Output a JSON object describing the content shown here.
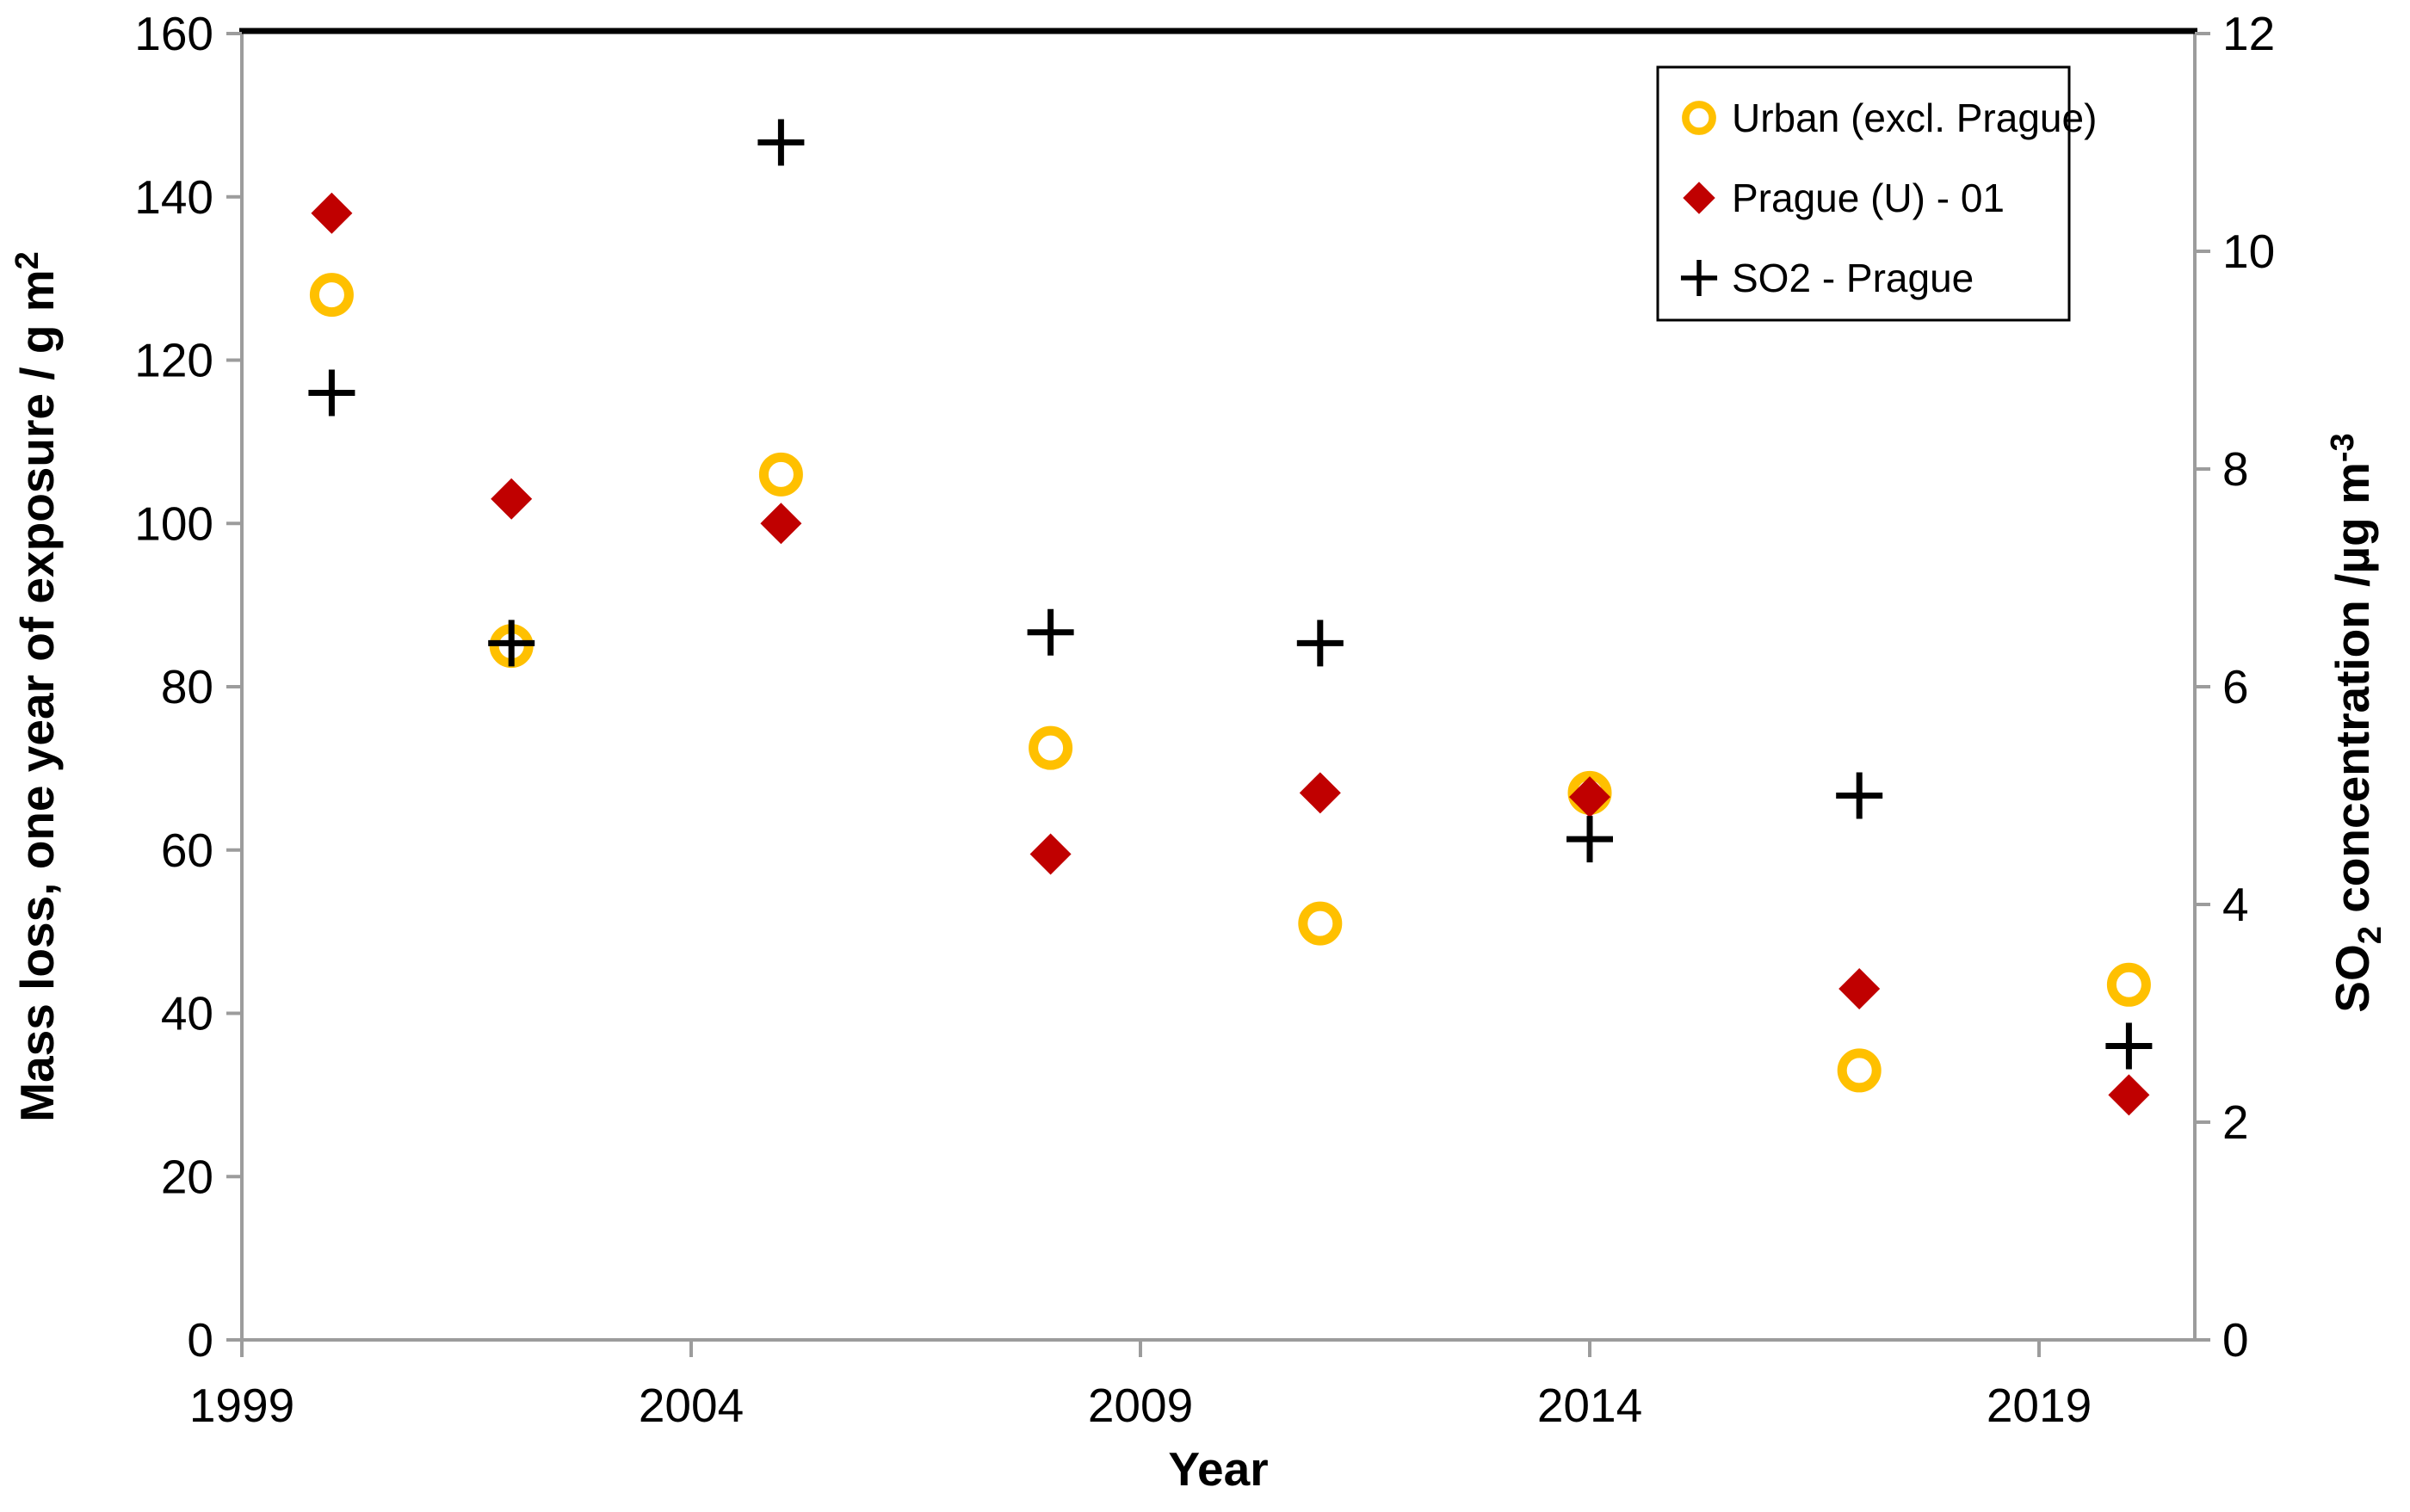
{
  "colors": {
    "axis": "#9C9C9C",
    "border": "#000000",
    "urban": "#FFC000",
    "prague": "#C00000",
    "so2": "#000000",
    "background": "#FFFFFF"
  },
  "chart_data": {
    "type": "scatter",
    "title": "",
    "xlabel": "Year",
    "ylabel_left": "Mass loss, one year of exposure / g m²",
    "ylabel_left_parts": {
      "main": "Mass loss, one year of exposure / g m",
      "sup": "2"
    },
    "ylabel_right": "SO₂ concentration /µg m⁻³",
    "ylabel_right_parts": {
      "pre": "SO",
      "sub": "2",
      "mid": " concentration /µg m",
      "sup": "-3"
    },
    "x_range": [
      1999,
      2020.8
    ],
    "x_ticks": [
      1999,
      2004,
      2009,
      2014,
      2019
    ],
    "y_left": {
      "range": [
        0,
        160
      ],
      "ticks": [
        0,
        20,
        40,
        60,
        80,
        100,
        120,
        140,
        160
      ]
    },
    "y_right": {
      "range": [
        0,
        12
      ],
      "ticks": [
        0,
        2,
        4,
        6,
        8,
        10,
        12
      ]
    },
    "grid": false,
    "years": [
      2000,
      2002,
      2005,
      2008,
      2011,
      2014,
      2017,
      2020
    ],
    "series": [
      {
        "name": "Urban (excl. Prague)",
        "marker": "circle",
        "color": "#FFC000",
        "axis": "left",
        "values": [
          128,
          85,
          106,
          72.5,
          51,
          67,
          33,
          43.5
        ]
      },
      {
        "name": "Prague (U) - 01",
        "marker": "diamond",
        "color": "#C00000",
        "axis": "left",
        "values": [
          138,
          103,
          100,
          59.5,
          67,
          66.5,
          43,
          30
        ]
      },
      {
        "name": "SO2 - Prague",
        "marker": "plus",
        "color": "#000000",
        "axis": "right",
        "values": [
          8.7,
          6.4,
          11,
          6.5,
          6.4,
          4.6,
          5,
          2.7
        ]
      }
    ],
    "legend": {
      "position": "top-right",
      "entries": [
        "Urban (excl. Prague)",
        "Prague (U) - 01",
        "SO2 - Prague"
      ]
    }
  }
}
